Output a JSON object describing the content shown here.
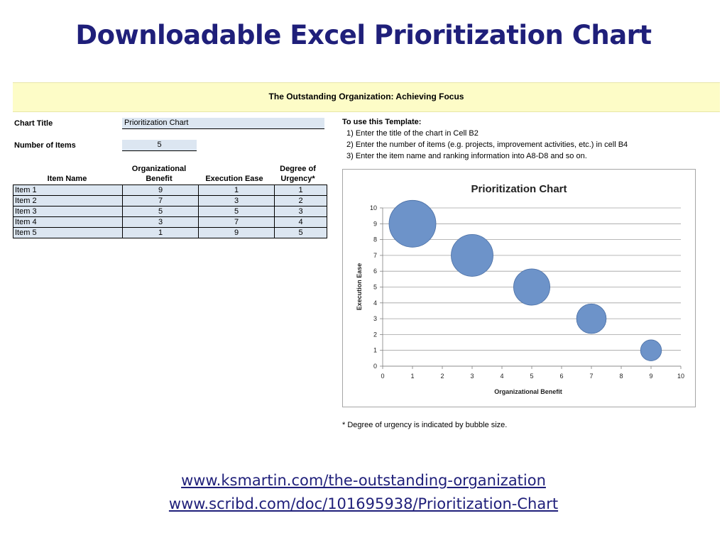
{
  "slide": {
    "title": "Downloadable Excel Prioritization Chart",
    "banner": "The Outstanding Organization: Achieving Focus",
    "links": [
      "www.ksmartin.com/the-outstanding-organization",
      "www.scribd.com/doc/101695938/Prioritization-Chart"
    ]
  },
  "sheet": {
    "chart_title_label": "Chart Title",
    "chart_title_value": "Prioritization Chart",
    "num_items_label": "Number of Items",
    "num_items_value": "5",
    "headers": {
      "item_name": "Item Name",
      "benefit_1": "Organizational",
      "benefit_2": "Benefit",
      "ease": "Execution Ease",
      "urgency_1": "Degree of",
      "urgency_2": "Urgency*"
    },
    "rows": [
      {
        "name": "Item 1",
        "benefit": "9",
        "ease": "1",
        "urgency": "1"
      },
      {
        "name": "Item 2",
        "benefit": "7",
        "ease": "3",
        "urgency": "2"
      },
      {
        "name": "Item 3",
        "benefit": "5",
        "ease": "5",
        "urgency": "3"
      },
      {
        "name": "Item 4",
        "benefit": "3",
        "ease": "7",
        "urgency": "4"
      },
      {
        "name": "Item 5",
        "benefit": "1",
        "ease": "9",
        "urgency": "5"
      }
    ]
  },
  "instructions": {
    "heading": "To use this Template:",
    "steps": [
      "1) Enter the title of the chart in Cell B2",
      "2) Enter the number of items (e.g. projects, improvement activities, etc.) in cell B4",
      "3) Enter the item name and ranking information into A8-D8 and so on."
    ],
    "footnote": "* Degree of urgency is indicated by bubble size."
  },
  "colors": {
    "title": "#1f1f7a",
    "banner": "#fdfcc7",
    "cell_fill": "#dce6f1",
    "bubble": "#6d93c9",
    "bubble_edge": "#4a6fa5"
  },
  "chart_data": {
    "type": "bubble",
    "title": "Prioritization  Chart",
    "xlabel": "Organizational Benefit",
    "ylabel": "Execution Ease",
    "xlim": [
      0,
      10
    ],
    "ylim": [
      0,
      10
    ],
    "xticks": [
      "0",
      "1",
      "2",
      "3",
      "4",
      "5",
      "6",
      "7",
      "8",
      "9",
      "10"
    ],
    "yticks": [
      "0",
      "1",
      "2",
      "3",
      "4",
      "5",
      "6",
      "7",
      "8",
      "9",
      "10"
    ],
    "grid": "horizontal",
    "legend": "none",
    "points": [
      {
        "x": 9,
        "y": 1,
        "size": 1
      },
      {
        "x": 7,
        "y": 3,
        "size": 2
      },
      {
        "x": 5,
        "y": 5,
        "size": 3
      },
      {
        "x": 3,
        "y": 7,
        "size": 4
      },
      {
        "x": 1,
        "y": 9,
        "size": 5
      }
    ]
  }
}
